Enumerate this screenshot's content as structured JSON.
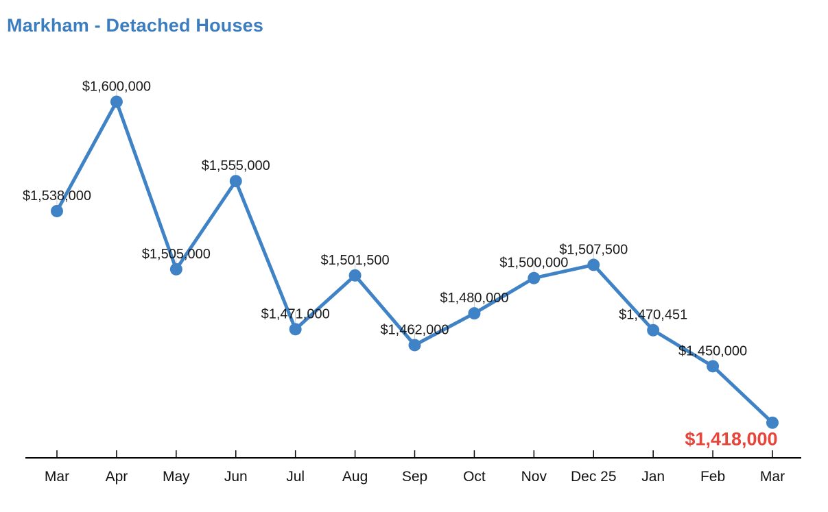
{
  "title": "Markham - Detached Houses",
  "colors": {
    "title": "#3c7dbf",
    "line": "#3f83c6",
    "marker": "#3f83c6",
    "label": "#1a1a1a",
    "month_label": "#111111",
    "highlight_label": "#e8443a",
    "axis": "#000000",
    "connector": "#cccccc",
    "background": "#ffffff"
  },
  "chart_data": {
    "type": "line",
    "title": "Markham - Detached Houses",
    "categories": [
      "Mar",
      "Apr",
      "May",
      "Jun",
      "Jul",
      "Aug",
      "Sep",
      "Oct",
      "Nov",
      "Dec 25",
      "Jan",
      "Feb",
      "Mar"
    ],
    "values": [
      1538000,
      1600000,
      1505000,
      1555000,
      1471000,
      1501500,
      1462000,
      1480000,
      1500000,
      1507500,
      1470451,
      1450000,
      1418000
    ],
    "labels": [
      "$1,538,000",
      "$1,600,000",
      "$1,505,000",
      "$1,555,000",
      "$1,471,000",
      "$1,501,500",
      "$1,462,000",
      "$1,480,000",
      "$1,500,000",
      "$1,507,500",
      "$1,470,451",
      "$1,450,000",
      "$1,418,000"
    ],
    "highlight_index": 12,
    "highlight_label": "$1,418,000",
    "ylim": [
      1400000,
      1620000
    ],
    "xlabel": "",
    "ylabel": "",
    "grid": false,
    "legend": false,
    "marker": "circle"
  }
}
